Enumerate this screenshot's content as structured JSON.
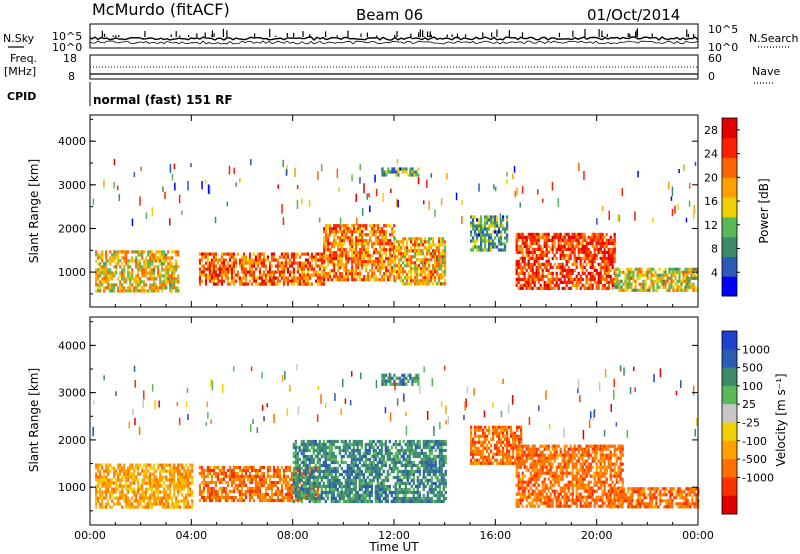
{
  "header": {
    "station": "McMurdo (fitACF)",
    "beam": "Beam 06",
    "date": "01/Oct/2014"
  },
  "summary": {
    "nsky_label": "N.Sky",
    "nsearch_label": "N.Search",
    "freq_label": "Freq.",
    "freq_unit": "[MHz]",
    "nave_label": "Nave",
    "cpid_label": "CPID",
    "cpid_text": "normal (fast) 151 RF",
    "noise_ticks_left": [
      "10^5",
      "10^0"
    ],
    "noise_ticks_right": [
      "10^5",
      "10^0"
    ],
    "freq_ticks": [
      "18",
      "8"
    ],
    "nave_ticks": [
      "60",
      "0"
    ]
  },
  "colors": {
    "power": [
      "#0000ff",
      "#2c5bb4",
      "#3c8c6c",
      "#5ab85a",
      "#f0d000",
      "#ffa000",
      "#ff6400",
      "#ff2000",
      "#e00000"
    ],
    "velocity": [
      "#2040d0",
      "#2c5bb4",
      "#3c8c6c",
      "#5ab85a",
      "#c8c8c8",
      "#f0d000",
      "#ffa000",
      "#ff7000",
      "#ff3000",
      "#e00000"
    ]
  },
  "chart_data": [
    {
      "type": "heatmap",
      "quantity": "power",
      "ylabel": "Slant Range [km]",
      "xlabel": "",
      "x_ticks": [],
      "y_ticks": [
        "1000",
        "2000",
        "3000",
        "4000"
      ],
      "ylim": [
        200,
        4600
      ],
      "xlim": [
        0,
        24
      ],
      "colorbar_label": "Power [dB]",
      "colorbar_ticks": [
        "4",
        "8",
        "12",
        "16",
        "20",
        "24",
        "28"
      ],
      "clim": [
        0,
        30
      ],
      "scatter_regions": [
        {
          "t": [
            0.2,
            3.5
          ],
          "r": [
            600,
            1500
          ],
          "level": 0.55
        },
        {
          "t": [
            4.3,
            9.2
          ],
          "r": [
            700,
            1450
          ],
          "level": 0.75
        },
        {
          "t": [
            9.2,
            12.0
          ],
          "r": [
            800,
            2100
          ],
          "level": 0.7
        },
        {
          "t": [
            12.0,
            14.0
          ],
          "r": [
            700,
            1800
          ],
          "level": 0.6
        },
        {
          "t": [
            11.5,
            13.0
          ],
          "r": [
            3200,
            3400
          ],
          "level": 0.3
        },
        {
          "t": [
            15.0,
            16.5
          ],
          "r": [
            1500,
            2300
          ],
          "level": 0.3
        },
        {
          "t": [
            16.8,
            20.7
          ],
          "r": [
            600,
            1900
          ],
          "level": 0.85
        },
        {
          "t": [
            20.7,
            24.0
          ],
          "r": [
            600,
            1100
          ],
          "level": 0.5
        }
      ]
    },
    {
      "type": "heatmap",
      "quantity": "velocity",
      "ylabel": "Slant Range [km]",
      "xlabel": "Time UT",
      "x_ticks": [
        "00:00",
        "04:00",
        "08:00",
        "12:00",
        "16:00",
        "20:00",
        "00:00"
      ],
      "y_ticks": [
        "1000",
        "2000",
        "3000",
        "4000"
      ],
      "ylim": [
        200,
        4600
      ],
      "xlim": [
        0,
        24
      ],
      "colorbar_label": "Velocity [m s⁻¹]",
      "colorbar_ticks": [
        "1000",
        "500",
        "100",
        "25",
        "-25",
        "-100",
        "-500",
        "-1000"
      ],
      "scatter_regions": [
        {
          "t": [
            0.2,
            4.0
          ],
          "r": [
            600,
            1500
          ],
          "vel": -100
        },
        {
          "t": [
            4.3,
            9.0
          ],
          "r": [
            700,
            1450
          ],
          "vel": -300
        },
        {
          "t": [
            8.0,
            14.0
          ],
          "r": [
            700,
            2000
          ],
          "vel": 120
        },
        {
          "t": [
            11.5,
            13.0
          ],
          "r": [
            3200,
            3400
          ],
          "vel": 60
        },
        {
          "t": [
            15.0,
            17.0
          ],
          "r": [
            1500,
            2300
          ],
          "vel": -200
        },
        {
          "t": [
            16.8,
            21.0
          ],
          "r": [
            600,
            1900
          ],
          "vel": -300
        },
        {
          "t": [
            20.5,
            24.0
          ],
          "r": [
            600,
            1000
          ],
          "vel": -250
        }
      ]
    }
  ]
}
